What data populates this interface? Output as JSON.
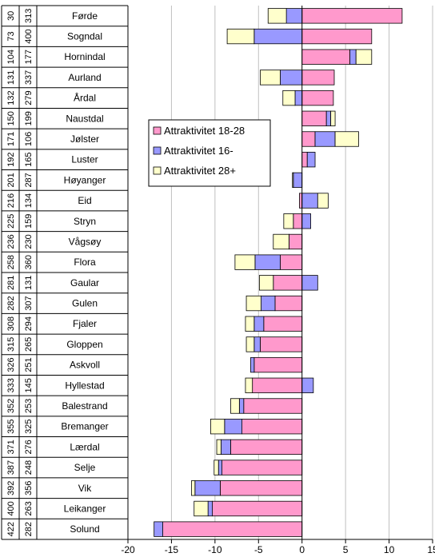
{
  "chart_data": {
    "type": "bar",
    "orientation": "horizontal",
    "stacking": "stacked-diverging",
    "categories": [
      "Førde",
      "Sogndal",
      "Hornindal",
      "Aurland",
      "Årdal",
      "Naustdal",
      "Jølster",
      "Luster",
      "Høyanger",
      "Eid",
      "Stryn",
      "Vågsøy",
      "Flora",
      "Gaular",
      "Gulen",
      "Fjaler",
      "Gloppen",
      "Askvoll",
      "Hyllestad",
      "Balestrand",
      "Bremanger",
      "Lærdal",
      "Selje",
      "Vik",
      "Leikanger",
      "Solund"
    ],
    "rank_labels": [
      "30",
      "73",
      "104",
      "131",
      "132",
      "150",
      "171",
      "192",
      "201",
      "216",
      "225",
      "236",
      "258",
      "281",
      "282",
      "308",
      "315",
      "326",
      "333",
      "352",
      "355",
      "371",
      "387",
      "392",
      "400",
      "422"
    ],
    "secondary_labels": [
      "313",
      "400",
      "177",
      "337",
      "279",
      "199",
      "106",
      "165",
      "287",
      "134",
      "159",
      "230",
      "360",
      "131",
      "307",
      "294",
      "265",
      "251",
      "145",
      "253",
      "325",
      "276",
      "248",
      "356",
      "263",
      "282"
    ],
    "series": [
      {
        "name": "Attraktivitet 18-28",
        "color": "#ff99cc",
        "values": [
          11.5,
          8.0,
          5.5,
          3.7,
          3.6,
          2.8,
          1.5,
          0.6,
          0.0,
          -0.3,
          -1.0,
          -1.5,
          -2.5,
          -3.3,
          -3.1,
          -4.4,
          -4.8,
          -5.5,
          -5.7,
          -6.7,
          -6.9,
          -8.2,
          -9.2,
          -9.4,
          -10.3,
          -16.0
        ]
      },
      {
        "name": "Attraktivitet 16-",
        "color": "#9999ff",
        "values": [
          -1.8,
          -5.5,
          0.7,
          -2.5,
          -0.8,
          0.5,
          2.3,
          0.9,
          -1.0,
          1.8,
          1.0,
          0.0,
          -2.9,
          1.8,
          -1.6,
          -1.1,
          -0.7,
          -0.4,
          1.3,
          -0.5,
          -2.0,
          -1.1,
          -0.4,
          -2.9,
          -0.5,
          -1.0
        ]
      },
      {
        "name": "Attraktivitet 28+",
        "color": "#ffffcc",
        "values": [
          -2.1,
          -3.1,
          1.8,
          -2.3,
          -1.4,
          0.5,
          2.7,
          0.0,
          -0.1,
          1.2,
          -1.1,
          -1.8,
          -2.3,
          -1.6,
          -1.7,
          -1.0,
          -0.9,
          0.0,
          -0.8,
          -1.0,
          -1.6,
          -0.5,
          -0.5,
          -0.4,
          -1.6,
          0.0
        ]
      }
    ],
    "xlim": [
      -20,
      15
    ],
    "xticks": [
      "-20",
      "-15",
      "-10",
      "-5",
      "0",
      "5",
      "10",
      "15"
    ],
    "grid": "vertical",
    "legend": "upper-left-inside"
  }
}
